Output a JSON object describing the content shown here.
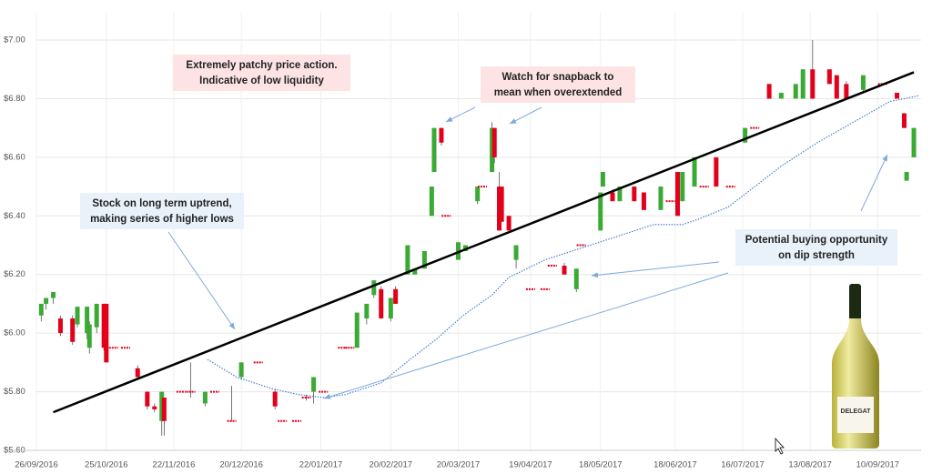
{
  "chart_data": {
    "type": "candlestick",
    "xlim": [
      "2016-09-26",
      "2017-09-28"
    ],
    "xticks": [
      {
        "value": "2016-09-26",
        "label": "26/09/2016"
      },
      {
        "value": "2016-10-25",
        "label": "25/10/2016"
      },
      {
        "value": "2016-11-22",
        "label": "22/11/2016"
      },
      {
        "value": "2016-12-20",
        "label": "20/12/2016"
      },
      {
        "value": "2017-01-22",
        "label": "22/01/2017"
      },
      {
        "value": "2017-02-20",
        "label": "20/02/2017"
      },
      {
        "value": "2017-03-20",
        "label": "20/03/2017"
      },
      {
        "value": "2017-04-19",
        "label": "19/04/2017"
      },
      {
        "value": "2017-05-18",
        "label": "18/05/2017"
      },
      {
        "value": "2017-06-18",
        "label": "18/06/2017"
      },
      {
        "value": "2017-07-16",
        "label": "16/07/2017"
      },
      {
        "value": "2017-08-13",
        "label": "13/08/2017"
      },
      {
        "value": "2017-09-10",
        "label": "10/09/2017"
      }
    ],
    "ylim": [
      5.6,
      7.0
    ],
    "yticks": [
      {
        "value": 5.6,
        "label": "$5.60"
      },
      {
        "value": 5.8,
        "label": "$5.80"
      },
      {
        "value": 6.0,
        "label": "$6.00"
      },
      {
        "value": 6.2,
        "label": "$6.20"
      },
      {
        "value": 6.4,
        "label": "$6.40"
      },
      {
        "value": 6.6,
        "label": "$6.60"
      },
      {
        "value": 6.8,
        "label": "$6.80"
      },
      {
        "value": 7.0,
        "label": "$7.00"
      }
    ],
    "grid": true,
    "up_color": "#3aaa35",
    "down_color": "#e3001b",
    "x": [
      "2016-09-28",
      "2016-09-30",
      "2016-10-03",
      "2016-10-06",
      "2016-10-11",
      "2016-10-13",
      "2016-10-17",
      "2016-10-18",
      "2016-10-21",
      "2016-10-24",
      "2016-10-25",
      "2016-10-28",
      "2016-11-02",
      "2016-11-07",
      "2016-11-11",
      "2016-11-14",
      "2016-11-17",
      "2016-11-18",
      "2016-11-25",
      "2016-11-29",
      "2016-12-05",
      "2016-12-09",
      "2016-12-16",
      "2016-12-20",
      "2016-12-27",
      "2017-01-03",
      "2017-01-06",
      "2017-01-12",
      "2017-01-16",
      "2017-01-19",
      "2017-01-23",
      "2017-01-31",
      "2017-02-03",
      "2017-02-06",
      "2017-02-10",
      "2017-02-13",
      "2017-02-16",
      "2017-02-20",
      "2017-02-22",
      "2017-02-27",
      "2017-03-02",
      "2017-03-06",
      "2017-03-09",
      "2017-03-10",
      "2017-03-13",
      "2017-03-15",
      "2017-03-20",
      "2017-03-23",
      "2017-03-28",
      "2017-03-30",
      "2017-04-03",
      "2017-04-04",
      "2017-04-06",
      "2017-04-07",
      "2017-04-10",
      "2017-04-13",
      "2017-04-19",
      "2017-04-25",
      "2017-04-28",
      "2017-05-03",
      "2017-05-08",
      "2017-05-10",
      "2017-05-18",
      "2017-05-19",
      "2017-05-23",
      "2017-05-26",
      "2017-06-01",
      "2017-06-05",
      "2017-06-12",
      "2017-06-16",
      "2017-06-19",
      "2017-06-21",
      "2017-06-26",
      "2017-06-30",
      "2017-07-05",
      "2017-07-11",
      "2017-07-17",
      "2017-07-21",
      "2017-07-27",
      "2017-08-01",
      "2017-08-07",
      "2017-08-10",
      "2017-08-14",
      "2017-08-21",
      "2017-08-24",
      "2017-08-28",
      "2017-09-04",
      "2017-09-12",
      "2017-09-18",
      "2017-09-21",
      "2017-09-22",
      "2017-09-25"
    ],
    "open": [
      6.06,
      6.1,
      6.12,
      6.05,
      6.05,
      6.03,
      6.0,
      5.95,
      6.02,
      6.1,
      6.1,
      5.95,
      5.95,
      5.88,
      5.8,
      5.75,
      5.7,
      5.78,
      5.8,
      5.8,
      5.76,
      5.8,
      5.7,
      5.85,
      5.9,
      5.8,
      5.7,
      5.7,
      5.78,
      5.8,
      5.8,
      5.95,
      5.95,
      5.95,
      6.05,
      6.13,
      6.15,
      6.05,
      6.15,
      6.2,
      6.2,
      6.22,
      6.4,
      6.55,
      6.7,
      6.4,
      6.25,
      6.28,
      6.45,
      6.5,
      6.55,
      6.7,
      6.5,
      6.5,
      6.4,
      6.25,
      6.15,
      6.15,
      6.23,
      6.23,
      6.15,
      6.3,
      6.35,
      6.5,
      6.48,
      6.45,
      6.5,
      6.48,
      6.42,
      6.45,
      6.55,
      6.45,
      6.5,
      6.5,
      6.6,
      6.5,
      6.65,
      6.7,
      6.85,
      6.8,
      6.8,
      6.8,
      6.9,
      6.9,
      6.88,
      6.85,
      6.83,
      6.85,
      6.82,
      6.75,
      6.52,
      6.6
    ],
    "high": [
      6.1,
      6.12,
      6.14,
      6.06,
      6.06,
      6.09,
      6.09,
      6.04,
      6.1,
      6.1,
      6.1,
      5.95,
      5.95,
      5.89,
      5.8,
      5.76,
      5.8,
      5.78,
      5.8,
      5.9,
      5.8,
      5.8,
      5.82,
      5.9,
      5.9,
      5.81,
      5.7,
      5.7,
      5.79,
      5.85,
      5.8,
      5.95,
      5.95,
      6.07,
      6.1,
      6.18,
      6.16,
      6.12,
      6.16,
      6.3,
      6.22,
      6.28,
      6.5,
      6.7,
      6.7,
      6.4,
      6.31,
      6.3,
      6.5,
      6.5,
      6.72,
      6.7,
      6.55,
      6.5,
      6.4,
      6.3,
      6.15,
      6.15,
      6.23,
      6.24,
      6.22,
      6.3,
      6.48,
      6.55,
      6.49,
      6.5,
      6.5,
      6.48,
      6.5,
      6.45,
      6.55,
      6.55,
      6.6,
      6.5,
      6.6,
      6.5,
      6.7,
      6.7,
      6.85,
      6.82,
      6.85,
      6.9,
      7.0,
      6.9,
      6.88,
      6.86,
      6.88,
      6.85,
      6.82,
      6.75,
      6.55,
      6.7
    ],
    "low": [
      6.04,
      6.08,
      6.1,
      5.99,
      5.96,
      6.02,
      5.98,
      5.93,
      6.0,
      5.94,
      5.9,
      5.95,
      5.95,
      5.84,
      5.74,
      5.73,
      5.65,
      5.65,
      5.8,
      5.78,
      5.75,
      5.8,
      5.7,
      5.84,
      5.9,
      5.74,
      5.7,
      5.7,
      5.77,
      5.76,
      5.8,
      5.95,
      5.95,
      5.95,
      6.03,
      6.12,
      6.05,
      6.04,
      6.1,
      6.2,
      6.2,
      6.22,
      6.4,
      6.55,
      6.64,
      6.4,
      6.25,
      6.28,
      6.44,
      6.5,
      6.55,
      6.58,
      6.35,
      6.38,
      6.35,
      6.22,
      6.15,
      6.15,
      6.23,
      6.2,
      6.14,
      6.3,
      6.35,
      6.5,
      6.45,
      6.45,
      6.45,
      6.42,
      6.42,
      6.45,
      6.4,
      6.45,
      6.5,
      6.5,
      6.5,
      6.5,
      6.65,
      6.7,
      6.8,
      6.8,
      6.8,
      6.8,
      6.8,
      6.85,
      6.8,
      6.8,
      6.82,
      6.85,
      6.8,
      6.7,
      6.52,
      6.6
    ],
    "close": [
      6.1,
      6.12,
      6.14,
      6.0,
      5.97,
      6.09,
      6.09,
      6.03,
      6.1,
      5.95,
      5.9,
      5.95,
      5.95,
      5.85,
      5.75,
      5.74,
      5.8,
      5.7,
      5.8,
      5.8,
      5.8,
      5.8,
      5.7,
      5.9,
      5.9,
      5.75,
      5.7,
      5.7,
      5.78,
      5.85,
      5.8,
      5.95,
      5.95,
      6.07,
      6.1,
      6.18,
      6.05,
      6.12,
      6.1,
      6.3,
      6.22,
      6.28,
      6.5,
      6.7,
      6.65,
      6.4,
      6.31,
      6.3,
      6.5,
      6.5,
      6.7,
      6.6,
      6.35,
      6.38,
      6.35,
      6.3,
      6.15,
      6.15,
      6.23,
      6.2,
      6.22,
      6.3,
      6.48,
      6.55,
      6.45,
      6.5,
      6.45,
      6.42,
      6.5,
      6.45,
      6.4,
      6.55,
      6.6,
      6.5,
      6.5,
      6.5,
      6.7,
      6.7,
      6.8,
      6.82,
      6.85,
      6.9,
      6.8,
      6.85,
      6.8,
      6.8,
      6.88,
      6.85,
      6.8,
      6.7,
      6.55,
      6.7
    ],
    "moving_average": {
      "color": "#4a7fd0",
      "x": [
        "2016-12-06",
        "2016-12-18",
        "2017-01-02",
        "2017-01-13",
        "2017-01-23",
        "2017-02-01",
        "2017-02-16",
        "2017-02-28",
        "2017-03-11",
        "2017-03-22",
        "2017-04-03",
        "2017-04-10",
        "2017-04-25",
        "2017-05-10",
        "2017-05-25",
        "2017-06-09",
        "2017-06-21",
        "2017-06-28",
        "2017-07-10",
        "2017-07-21",
        "2017-08-01",
        "2017-08-16",
        "2017-08-31",
        "2017-09-15",
        "2017-09-27"
      ],
      "values": [
        5.91,
        5.85,
        5.81,
        5.79,
        5.78,
        5.79,
        5.83,
        5.91,
        5.98,
        6.06,
        6.13,
        6.19,
        6.25,
        6.29,
        6.33,
        6.37,
        6.37,
        6.39,
        6.43,
        6.5,
        6.57,
        6.65,
        6.72,
        6.79,
        6.81
      ]
    },
    "trendline": {
      "color": "#000000",
      "x": [
        "2016-10-03",
        "2017-09-25"
      ],
      "values": [
        5.73,
        6.89
      ]
    },
    "annotations": [
      {
        "lines": [
          "Extremely patchy price action.",
          "Indicative of low liquidity"
        ],
        "background": "#fde3e4"
      },
      {
        "lines": [
          "Watch for snapback to",
          "mean when overextended"
        ],
        "background": "#fde3e4"
      },
      {
        "lines": [
          "Stock on long term uptrend,",
          "making series of higher lows"
        ],
        "background": "#e9f1fa"
      },
      {
        "lines": [
          "Potential buying opportunity",
          "on dip strength"
        ],
        "background": "#e9f1fa"
      }
    ],
    "image_text": "DELEGAT"
  }
}
